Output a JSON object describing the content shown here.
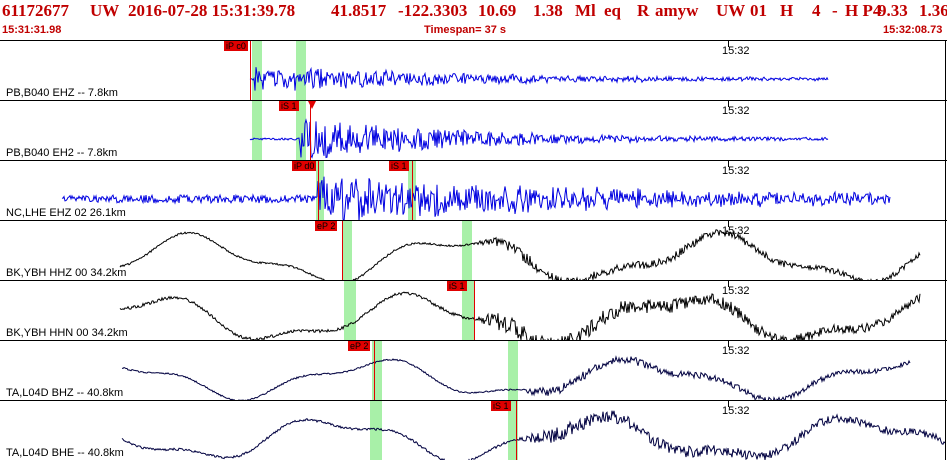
{
  "header": {
    "evid": "61172677",
    "net": "UW",
    "datetime": "2016-07-28 15:31:39.78",
    "lat": "41.8517",
    "lon": "-122.3303",
    "depth": "10.69",
    "mag": "1.38",
    "magtype": "Ml",
    "etype": "eq",
    "review": "R",
    "user": "amyw",
    "auth": "UW",
    "num": "01",
    "h": "H",
    "n": "4",
    "dash": "-",
    "hp": "H P4",
    "v1": "9.33",
    "v2": "1.36"
  },
  "subbar": {
    "start": "15:31:31.98",
    "timespan": "Timespan=  37 s",
    "end": "15:32:08.73"
  },
  "panels": [
    {
      "channel": "PB,B040 EHZ -- 7.8km",
      "time_label": "15:32",
      "color": "#0000e0",
      "picks": [
        {
          "label": "iP c0"
        }
      ],
      "arrow": false
    },
    {
      "channel": "PB,B040 EH2 -- 7.8km",
      "time_label": "15:32",
      "color": "#0000e0",
      "picks": [
        {
          "label": "iS 1"
        }
      ],
      "arrow": true
    },
    {
      "channel": "NC,LHE EHZ 02 26.1km",
      "time_label": "15:32",
      "color": "#0000e0",
      "picks": [
        {
          "label": "iP d0"
        },
        {
          "label": "iS 1"
        }
      ],
      "arrow": false
    },
    {
      "channel": "BK,YBH HHZ 00 34.2km",
      "time_label": "15:32",
      "color": "#000000",
      "picks": [
        {
          "label": "eP 2"
        }
      ],
      "arrow": false
    },
    {
      "channel": "BK,YBH HHN 00 34.2km",
      "time_label": "15:32",
      "color": "#000000",
      "picks": [
        {
          "label": "iS 1"
        }
      ],
      "arrow": false
    },
    {
      "channel": "TA,L04D BHZ -- 40.8km",
      "time_label": "15:32",
      "color": "#000040",
      "picks": [
        {
          "label": "eP 2"
        }
      ],
      "arrow": false
    },
    {
      "channel": "TA,L04D BHE -- 40.8km",
      "time_label": "15:32",
      "color": "#000040",
      "picks": [
        {
          "label": "iS 1"
        }
      ],
      "arrow": false
    }
  ]
}
